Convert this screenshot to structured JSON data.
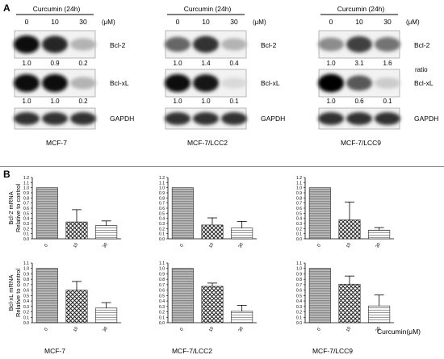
{
  "panel_a": {
    "letter": "A",
    "groups": [
      {
        "treatment": "Curcumin (24h)",
        "doses": [
          "0",
          "10",
          "30"
        ],
        "unit": "(μM)",
        "bcl2": {
          "label": "Bcl-2",
          "ratios": [
            "1.0",
            "0.9",
            "0.2"
          ],
          "intensity": [
            0.95,
            0.85,
            0.3
          ]
        },
        "bclxl": {
          "label": "Bcl-xL",
          "ratios": [
            "1.0",
            "1.0",
            "0.2"
          ],
          "intensity": [
            0.95,
            0.95,
            0.3
          ]
        },
        "gapdh": {
          "label": "GAPDH"
        },
        "cell_line": "MCF-7"
      },
      {
        "treatment": "Curcumin (24h)",
        "doses": [
          "0",
          "10",
          "30"
        ],
        "unit": "(μM)",
        "bcl2": {
          "label": "Bcl-2",
          "ratios": [
            "1.0",
            "1.4",
            "0.4"
          ],
          "intensity": [
            0.6,
            0.8,
            0.3
          ]
        },
        "bclxl": {
          "label": "Bcl-xL",
          "ratios": [
            "1.0",
            "1.0",
            "0.1"
          ],
          "intensity": [
            0.95,
            0.9,
            0.15
          ]
        },
        "gapdh": {
          "label": "GAPDH"
        },
        "cell_line": "MCF-7/LCC2"
      },
      {
        "treatment": "Curcumin (24h)",
        "doses": [
          "0",
          "10",
          "30"
        ],
        "unit": "(μM)",
        "bcl2": {
          "label": "Bcl-2",
          "ratios": [
            "1.0",
            "3.1",
            "1.6"
          ],
          "intensity": [
            0.45,
            0.75,
            0.55
          ]
        },
        "bclxl": {
          "label": "Bcl-xL",
          "ratios": [
            "1.0",
            "0.6",
            "0.1"
          ],
          "intensity": [
            1.0,
            0.65,
            0.2
          ]
        },
        "gapdh": {
          "label": "GAPDH"
        },
        "cell_line": "MCF-7/LCC9"
      }
    ],
    "ratio_label": "ratio"
  },
  "panel_b": {
    "letter": "B",
    "xlabel": "Curcumin(μM)",
    "bcl2_ylabel_line1": "Bcl-2 mRNA",
    "bcl2_ylabel_line2": "Relative to control",
    "bclxl_ylabel_line1": "Bcl-xL mRNA",
    "bclxl_ylabel_line2": "Relative to control",
    "cell_lines": [
      "MCF-7",
      "MCF-7/LCC2",
      "MCF-7/LCC9"
    ]
  },
  "chart_data": [
    {
      "type": "bar",
      "row": "Bcl-2",
      "cell_line": "MCF-7",
      "categories": [
        "0",
        "10",
        "30"
      ],
      "values": [
        1.0,
        0.33,
        0.26
      ],
      "errors": [
        0,
        0.24,
        0.09
      ],
      "ylim": [
        0,
        1.2
      ],
      "yticks": [
        "0.0",
        "0.1",
        "0.2",
        "0.3",
        "0.4",
        "0.5",
        "0.6",
        "0.7",
        "0.8",
        "0.9",
        "1.0",
        "1.1",
        "1.2"
      ]
    },
    {
      "type": "bar",
      "row": "Bcl-2",
      "cell_line": "MCF-7/LCC2",
      "categories": [
        "0",
        "10",
        "30"
      ],
      "values": [
        1.0,
        0.27,
        0.21
      ],
      "errors": [
        0,
        0.14,
        0.13
      ],
      "ylim": [
        0,
        1.2
      ],
      "yticks": [
        "0.0",
        "0.1",
        "0.2",
        "0.3",
        "0.4",
        "0.5",
        "0.6",
        "0.7",
        "0.8",
        "0.9",
        "1.0",
        "1.1",
        "1.2"
      ]
    },
    {
      "type": "bar",
      "row": "Bcl-2",
      "cell_line": "MCF-7/LCC9",
      "categories": [
        "0",
        "10",
        "30"
      ],
      "values": [
        1.0,
        0.37,
        0.17
      ],
      "errors": [
        0,
        0.35,
        0.05
      ],
      "ylim": [
        0,
        1.2
      ],
      "yticks": [
        "0.0",
        "0.1",
        "0.2",
        "0.3",
        "0.4",
        "0.5",
        "0.6",
        "0.7",
        "0.8",
        "0.9",
        "1.0",
        "1.1",
        "1.2"
      ]
    },
    {
      "type": "bar",
      "row": "Bcl-xL",
      "cell_line": "MCF-7",
      "categories": [
        "0",
        "10",
        "30"
      ],
      "values": [
        1.0,
        0.6,
        0.27
      ],
      "errors": [
        0,
        0.16,
        0.1
      ],
      "ylim": [
        0,
        1.1
      ],
      "yticks": [
        "0.0",
        "0.1",
        "0.2",
        "0.3",
        "0.4",
        "0.5",
        "0.6",
        "0.7",
        "0.8",
        "0.9",
        "1.0",
        "1.1"
      ]
    },
    {
      "type": "bar",
      "row": "Bcl-xL",
      "cell_line": "MCF-7/LCC2",
      "categories": [
        "0",
        "10",
        "30"
      ],
      "values": [
        1.0,
        0.67,
        0.21
      ],
      "errors": [
        0,
        0.06,
        0.11
      ],
      "ylim": [
        0,
        1.1
      ],
      "yticks": [
        "0.0",
        "0.1",
        "0.2",
        "0.3",
        "0.4",
        "0.5",
        "0.6",
        "0.7",
        "0.8",
        "0.9",
        "1.0",
        "1.1"
      ]
    },
    {
      "type": "bar",
      "row": "Bcl-xL",
      "cell_line": "MCF-7/LCC9",
      "categories": [
        "0",
        "10",
        "30"
      ],
      "values": [
        1.0,
        0.71,
        0.31
      ],
      "errors": [
        0,
        0.15,
        0.2
      ],
      "ylim": [
        0,
        1.1
      ],
      "yticks": [
        "0.0",
        "0.1",
        "0.2",
        "0.3",
        "0.4",
        "0.5",
        "0.6",
        "0.7",
        "0.8",
        "0.9",
        "1.0",
        "1.1"
      ]
    }
  ]
}
